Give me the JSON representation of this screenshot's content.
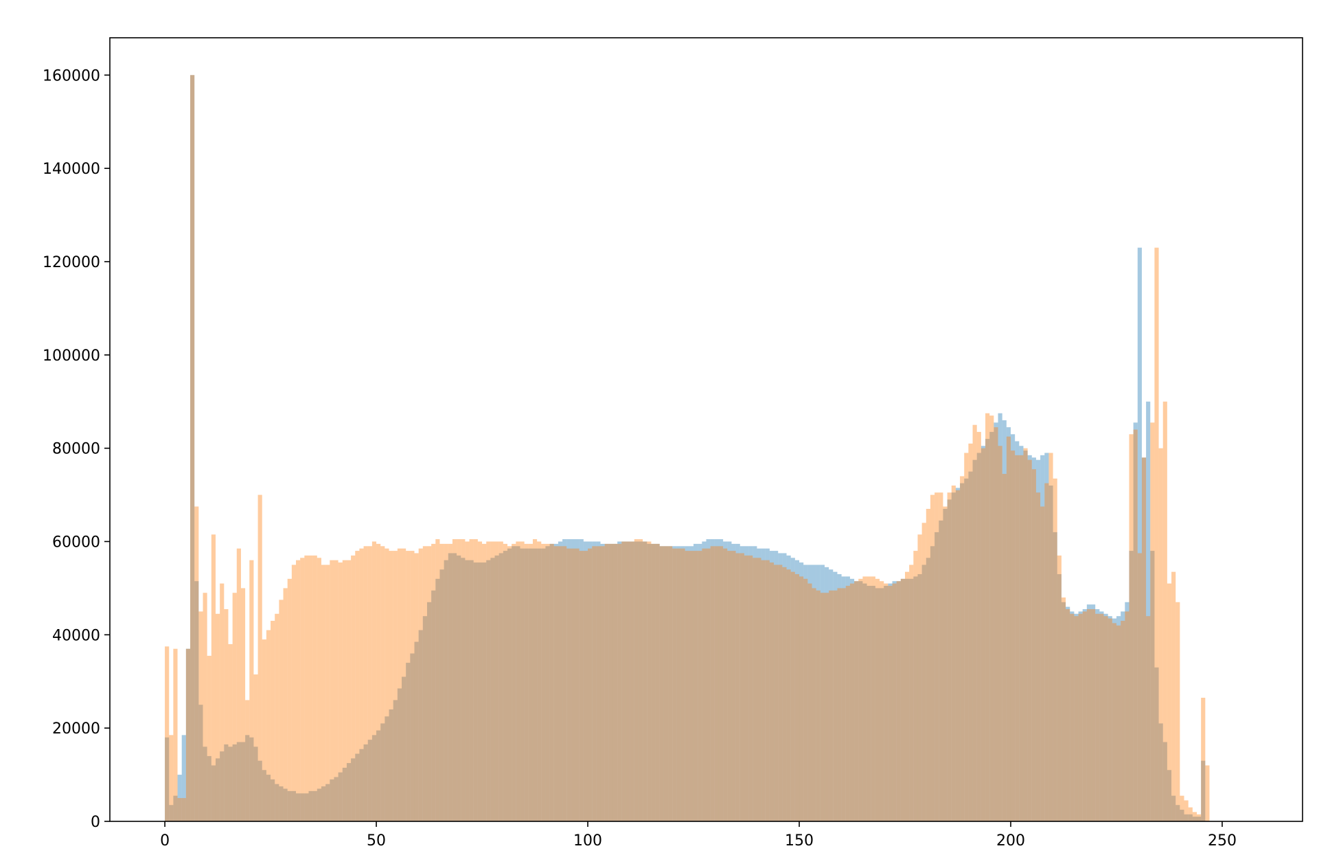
{
  "chart_data": {
    "type": "bar",
    "title": "",
    "xlabel": "",
    "ylabel": "",
    "xlim": [
      -13,
      269
    ],
    "ylim": [
      0,
      168000
    ],
    "x_ticks": [
      0,
      50,
      100,
      150,
      200,
      250
    ],
    "y_ticks": [
      0,
      20000,
      40000,
      60000,
      80000,
      100000,
      120000,
      140000,
      160000
    ],
    "legend": "none",
    "grid": false,
    "bin_width": 1,
    "x_start": 0,
    "series": [
      {
        "color": "#1f77b4",
        "opacity": 0.4,
        "values": [
          18000,
          3500,
          5500,
          10000,
          18500,
          37000,
          160000,
          51500,
          25000,
          16000,
          14000,
          12000,
          13500,
          15000,
          16500,
          16000,
          16500,
          17000,
          17000,
          18500,
          18000,
          16000,
          13000,
          11000,
          10000,
          9000,
          8000,
          7500,
          7000,
          6500,
          6500,
          6000,
          6000,
          6000,
          6500,
          6500,
          7000,
          7500,
          8000,
          9000,
          9500,
          10500,
          11500,
          12500,
          13500,
          14500,
          15500,
          16500,
          17500,
          18500,
          19500,
          21000,
          22500,
          24000,
          26000,
          28500,
          31000,
          34000,
          36000,
          38500,
          41000,
          44000,
          47000,
          49500,
          52000,
          54000,
          56000,
          57500,
          57500,
          57000,
          56500,
          56000,
          56000,
          55500,
          55500,
          55500,
          56000,
          56500,
          57000,
          57500,
          58000,
          58500,
          59000,
          59000,
          58500,
          58500,
          58500,
          58500,
          58500,
          58500,
          59000,
          59500,
          59500,
          60000,
          60500,
          60500,
          60500,
          60500,
          60500,
          60000,
          60000,
          60000,
          60000,
          59500,
          59500,
          59500,
          59500,
          60000,
          60000,
          60000,
          60000,
          60000,
          60000,
          60000,
          59500,
          59500,
          59500,
          59000,
          59000,
          59000,
          59000,
          59000,
          59000,
          59000,
          59000,
          59500,
          59500,
          60000,
          60500,
          60500,
          60500,
          60500,
          60000,
          60000,
          59500,
          59500,
          59000,
          59000,
          59000,
          59000,
          58500,
          58500,
          58500,
          58000,
          58000,
          57500,
          57500,
          57000,
          56500,
          56000,
          55500,
          55000,
          55000,
          55000,
          55000,
          55000,
          54500,
          54000,
          53500,
          53000,
          52500,
          52500,
          52000,
          51500,
          51500,
          51000,
          50500,
          50500,
          50000,
          50000,
          50500,
          51000,
          51500,
          51500,
          52000,
          52000,
          52000,
          52500,
          53000,
          55000,
          56500,
          59000,
          62000,
          64500,
          67000,
          69000,
          70500,
          71500,
          72500,
          73500,
          75000,
          77500,
          79000,
          80500,
          82000,
          83500,
          85500,
          87500,
          86000,
          84500,
          83000,
          81500,
          80500,
          79500,
          78500,
          78000,
          77500,
          78500,
          79000,
          72000,
          62000,
          53000,
          47000,
          46000,
          45000,
          44500,
          45000,
          45500,
          46500,
          46500,
          45500,
          45000,
          44500,
          44000,
          43500,
          44000,
          45000,
          47000,
          58000,
          85500,
          123000,
          78000,
          90000,
          58000,
          33000,
          21000,
          17000,
          11000,
          5500,
          3500,
          2500,
          1500,
          1500,
          1000,
          1000,
          13000
        ]
      },
      {
        "color": "#ff7f0e",
        "opacity": 0.4,
        "values": [
          37500,
          18500,
          37000,
          5000,
          5000,
          37000,
          160000,
          67500,
          45000,
          49000,
          35500,
          61500,
          44500,
          51000,
          45500,
          38000,
          49000,
          58500,
          50000,
          26000,
          56000,
          31500,
          70000,
          39000,
          41000,
          43000,
          44500,
          47500,
          50000,
          52000,
          55000,
          56000,
          56500,
          57000,
          57000,
          57000,
          56500,
          55000,
          55000,
          56000,
          56000,
          55500,
          56000,
          56000,
          57000,
          58000,
          58500,
          59000,
          59000,
          60000,
          59500,
          59000,
          58500,
          58000,
          58000,
          58500,
          58500,
          58000,
          58000,
          57500,
          58500,
          59000,
          59000,
          59500,
          60500,
          59500,
          59500,
          59500,
          60500,
          60500,
          60500,
          60000,
          60500,
          60500,
          60000,
          59500,
          60000,
          60000,
          60000,
          60000,
          59500,
          59000,
          59500,
          60000,
          60000,
          59500,
          59500,
          60500,
          60000,
          59500,
          59500,
          59500,
          59000,
          59000,
          59000,
          58500,
          58500,
          58500,
          58000,
          58000,
          58500,
          59000,
          59000,
          59000,
          59500,
          59500,
          59500,
          59500,
          60000,
          60000,
          60000,
          60500,
          60500,
          60000,
          60000,
          59500,
          59500,
          59000,
          59000,
          59000,
          58500,
          58500,
          58500,
          58000,
          58000,
          58000,
          58000,
          58500,
          58500,
          59000,
          59000,
          59000,
          58500,
          58000,
          58000,
          57500,
          57500,
          57000,
          57000,
          56500,
          56500,
          56000,
          56000,
          55500,
          55000,
          55000,
          54500,
          54000,
          53500,
          53000,
          52500,
          52000,
          51000,
          50000,
          49500,
          49000,
          49000,
          49500,
          49500,
          50000,
          50000,
          50500,
          51000,
          51500,
          52000,
          52500,
          52500,
          52500,
          52000,
          51500,
          51000,
          50500,
          51000,
          51500,
          52000,
          53500,
          55000,
          58000,
          61500,
          64000,
          67000,
          70000,
          70500,
          70500,
          67500,
          70500,
          72000,
          71000,
          74000,
          79000,
          81000,
          85000,
          83500,
          80000,
          87500,
          87000,
          84500,
          80500,
          74500,
          82500,
          79500,
          78500,
          78500,
          80000,
          77500,
          75500,
          70500,
          67500,
          72500,
          79000,
          73500,
          57000,
          48000,
          45500,
          44500,
          44000,
          44500,
          45000,
          45500,
          45500,
          44500,
          44500,
          44000,
          43500,
          42500,
          42000,
          43000,
          45000,
          83000,
          84000,
          57500,
          78000,
          44000,
          85500,
          123000,
          80000,
          90000,
          51000,
          53500,
          47000,
          5500,
          4500,
          3000,
          2000,
          1500,
          26500,
          12000
        ]
      }
    ]
  }
}
